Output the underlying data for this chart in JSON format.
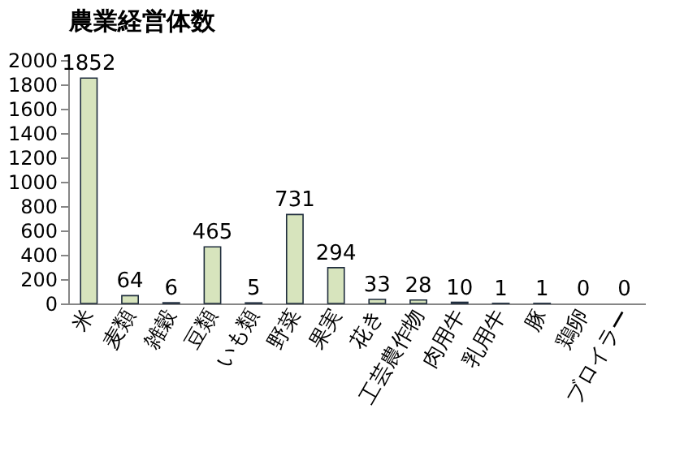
{
  "chart_data": {
    "type": "bar",
    "title": "農業経営体数",
    "categories": [
      "米",
      "麦類",
      "雑穀",
      "豆類",
      "いも類",
      "野菜",
      "果実",
      "花き",
      "工芸農作物",
      "肉用牛",
      "乳用牛",
      "豚",
      "鶏卵",
      "ブロイラー"
    ],
    "values": [
      1852,
      64,
      6,
      465,
      5,
      731,
      294,
      33,
      28,
      10,
      1,
      1,
      0,
      0
    ],
    "color": "#d7e4bd",
    "ylim": [
      0,
      2000
    ],
    "yticks": [
      0,
      200,
      400,
      600,
      800,
      1000,
      1200,
      1400,
      1600,
      1800,
      2000
    ],
    "grid": false,
    "data_labels": true
  }
}
